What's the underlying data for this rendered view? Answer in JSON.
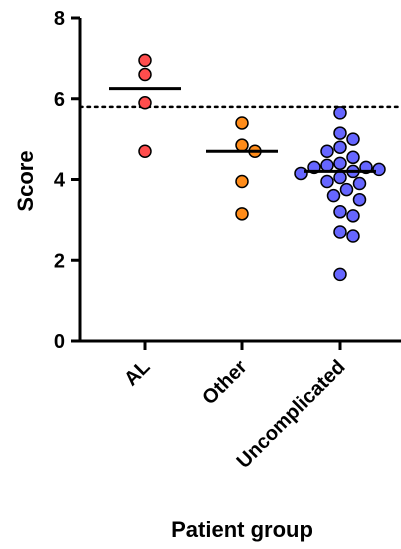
{
  "chart_data": {
    "type": "scatter",
    "xlabel": "Patient group",
    "ylabel": "Score",
    "ylim": [
      0,
      8
    ],
    "y_ticks": [
      0,
      2,
      4,
      6,
      8
    ],
    "categories": [
      "AL",
      "Other",
      "Uncomplicated"
    ],
    "reference_line": {
      "y": 5.8,
      "style": "dotted"
    },
    "groups": [
      {
        "category": "AL",
        "color": "#ff4d4d",
        "mean": 6.25,
        "points": [
          6.95,
          6.6,
          5.9,
          4.7
        ]
      },
      {
        "category": "Other",
        "color": "#ff8c1a",
        "mean": 4.7,
        "points": [
          5.4,
          4.85,
          4.7,
          3.95,
          3.15
        ]
      },
      {
        "category": "Uncomplicated",
        "color": "#6666ff",
        "mean": 4.2,
        "points": [
          5.65,
          5.15,
          5.0,
          4.8,
          4.7,
          4.55,
          4.4,
          4.35,
          4.3,
          4.3,
          4.25,
          4.2,
          4.15,
          4.05,
          3.95,
          3.9,
          3.75,
          3.6,
          3.5,
          3.2,
          3.1,
          2.7,
          2.6,
          1.65
        ]
      }
    ],
    "grid": false,
    "legend": "none"
  }
}
